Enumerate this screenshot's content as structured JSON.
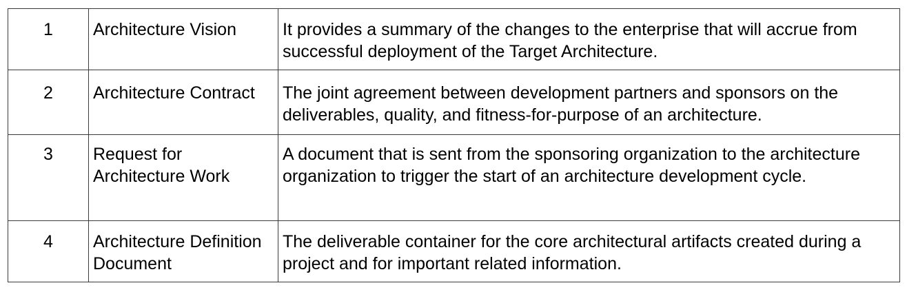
{
  "rows": [
    {
      "number": "1",
      "name": "Architecture Vision",
      "description": "It provides a summary of the changes to the enterprise that will accrue from successful deployment of the Target Architecture."
    },
    {
      "number": "2",
      "name": "Architecture Contract",
      "description": "The joint agreement between development partners and sponsors on the deliverables, quality, and fitness-for-purpose of an architecture."
    },
    {
      "number": "3",
      "name": "Request for Architecture Work",
      "description": "A document that is sent from the sponsoring organization to the architecture organization to trigger the start of an architecture development cycle."
    },
    {
      "number": "4",
      "name": "Architecture Definition Document",
      "description": "The deliverable container for the core architectural artifacts created during a project and for important related information."
    }
  ]
}
